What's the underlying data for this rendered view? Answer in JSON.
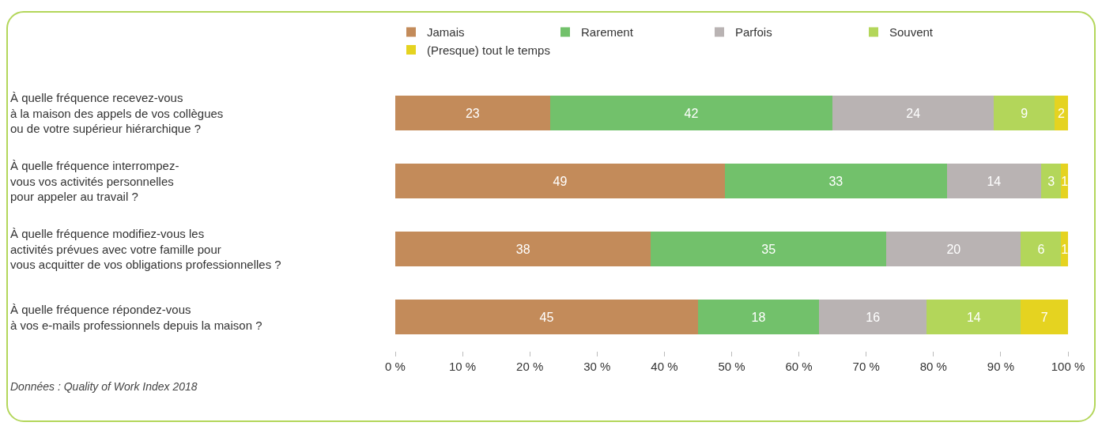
{
  "chart_data": {
    "type": "bar",
    "orientation": "horizontal",
    "stacked": true,
    "categories": [
      "À quelle fréquence recevez-vous\nà la maison des appels de vos collègues\nou de votre supérieur hiérarchique ?",
      "À quelle fréquence interrompez-\nvous vos activités personnelles\npour appeler au travail ?",
      "À quelle fréquence modifiez-vous les\nactivités prévues avec votre famille pour\nvous acquitter de vos obligations professionnelles ?",
      "À quelle fréquence répondez-vous\nà vos e-mails professionnels depuis la maison ?"
    ],
    "series": [
      {
        "name": "Jamais",
        "color": "#c38b5a",
        "values": [
          23,
          49,
          38,
          45
        ]
      },
      {
        "name": "Rarement",
        "color": "#72c16b",
        "values": [
          42,
          33,
          35,
          18
        ]
      },
      {
        "name": "Parfois",
        "color": "#b9b3b3",
        "values": [
          24,
          14,
          20,
          16
        ]
      },
      {
        "name": "Souvent",
        "color": "#b3d65a",
        "values": [
          9,
          3,
          6,
          14
        ]
      },
      {
        "name": "(Presque) tout le temps",
        "color": "#e5d320",
        "values": [
          2,
          1,
          1,
          7
        ]
      }
    ],
    "xlim": [
      0,
      100
    ],
    "xticks": [
      {
        "value": 0,
        "label": "0 %"
      },
      {
        "value": 10,
        "label": "10 %"
      },
      {
        "value": 20,
        "label": "20 %"
      },
      {
        "value": 30,
        "label": "30 %"
      },
      {
        "value": 40,
        "label": "40 %"
      },
      {
        "value": 50,
        "label": "50 %"
      },
      {
        "value": 60,
        "label": "60 %"
      },
      {
        "value": 70,
        "label": "70 %"
      },
      {
        "value": 80,
        "label": "80 %"
      },
      {
        "value": 90,
        "label": "90 %"
      },
      {
        "value": 100,
        "label": "100 %"
      }
    ],
    "data_labels": true,
    "grid": false,
    "legend": "top",
    "annotations": [
      "Données : Quality of Work Index 2018"
    ]
  }
}
